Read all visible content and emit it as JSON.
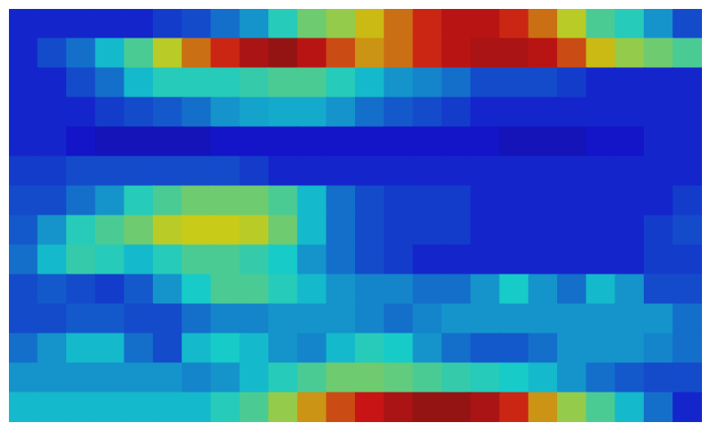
{
  "chart_data": {
    "type": "heatmap",
    "tick_labels": false,
    "xlim": [
      0,
      24
    ],
    "ylim": [
      0,
      14
    ],
    "color_range": [
      0,
      1
    ],
    "cells": [
      [
        0.15,
        0.15,
        0.15,
        0.15,
        0.15,
        0.18,
        0.2,
        0.25,
        0.3,
        0.4,
        0.5,
        0.55,
        0.65,
        0.75,
        0.85,
        0.9,
        0.9,
        0.85,
        0.75,
        0.6,
        0.45,
        0.4,
        0.3,
        0.2
      ],
      [
        0.15,
        0.2,
        0.25,
        0.35,
        0.45,
        0.6,
        0.75,
        0.85,
        0.92,
        0.95,
        0.9,
        0.8,
        0.7,
        0.75,
        0.85,
        0.9,
        0.92,
        0.92,
        0.9,
        0.8,
        0.65,
        0.55,
        0.5,
        0.45
      ],
      [
        0.15,
        0.15,
        0.2,
        0.25,
        0.35,
        0.4,
        0.4,
        0.4,
        0.42,
        0.45,
        0.45,
        0.4,
        0.35,
        0.3,
        0.28,
        0.25,
        0.2,
        0.2,
        0.2,
        0.18,
        0.15,
        0.15,
        0.15,
        0.15
      ],
      [
        0.15,
        0.15,
        0.15,
        0.18,
        0.2,
        0.22,
        0.25,
        0.3,
        0.32,
        0.33,
        0.33,
        0.3,
        0.25,
        0.22,
        0.2,
        0.18,
        0.15,
        0.15,
        0.15,
        0.15,
        0.15,
        0.15,
        0.15,
        0.15
      ],
      [
        0.15,
        0.15,
        0.12,
        0.1,
        0.1,
        0.1,
        0.1,
        0.12,
        0.12,
        0.12,
        0.12,
        0.12,
        0.12,
        0.12,
        0.12,
        0.12,
        0.12,
        0.1,
        0.1,
        0.1,
        0.12,
        0.12,
        0.15,
        0.15
      ],
      [
        0.18,
        0.18,
        0.2,
        0.2,
        0.2,
        0.2,
        0.2,
        0.2,
        0.18,
        0.15,
        0.15,
        0.15,
        0.15,
        0.15,
        0.15,
        0.15,
        0.15,
        0.15,
        0.15,
        0.15,
        0.15,
        0.15,
        0.15,
        0.15
      ],
      [
        0.2,
        0.2,
        0.25,
        0.3,
        0.4,
        0.45,
        0.5,
        0.5,
        0.5,
        0.45,
        0.35,
        0.25,
        0.2,
        0.18,
        0.18,
        0.18,
        0.15,
        0.15,
        0.15,
        0.15,
        0.15,
        0.15,
        0.15,
        0.18
      ],
      [
        0.22,
        0.3,
        0.4,
        0.45,
        0.5,
        0.6,
        0.62,
        0.62,
        0.6,
        0.5,
        0.35,
        0.25,
        0.2,
        0.18,
        0.18,
        0.18,
        0.15,
        0.15,
        0.15,
        0.15,
        0.15,
        0.15,
        0.18,
        0.2
      ],
      [
        0.25,
        0.35,
        0.42,
        0.4,
        0.35,
        0.4,
        0.45,
        0.45,
        0.42,
        0.38,
        0.3,
        0.25,
        0.2,
        0.18,
        0.15,
        0.15,
        0.15,
        0.15,
        0.15,
        0.15,
        0.15,
        0.15,
        0.18,
        0.18
      ],
      [
        0.2,
        0.22,
        0.2,
        0.18,
        0.22,
        0.3,
        0.38,
        0.45,
        0.45,
        0.4,
        0.35,
        0.3,
        0.28,
        0.28,
        0.25,
        0.25,
        0.3,
        0.38,
        0.3,
        0.25,
        0.35,
        0.3,
        0.2,
        0.2
      ],
      [
        0.2,
        0.2,
        0.22,
        0.22,
        0.2,
        0.2,
        0.25,
        0.28,
        0.28,
        0.3,
        0.3,
        0.3,
        0.28,
        0.25,
        0.28,
        0.3,
        0.3,
        0.3,
        0.3,
        0.3,
        0.3,
        0.3,
        0.3,
        0.25
      ],
      [
        0.25,
        0.3,
        0.35,
        0.35,
        0.25,
        0.2,
        0.35,
        0.38,
        0.35,
        0.3,
        0.28,
        0.35,
        0.4,
        0.38,
        0.3,
        0.25,
        0.22,
        0.22,
        0.25,
        0.3,
        0.3,
        0.3,
        0.28,
        0.25
      ],
      [
        0.3,
        0.3,
        0.3,
        0.3,
        0.3,
        0.3,
        0.28,
        0.3,
        0.35,
        0.4,
        0.45,
        0.5,
        0.5,
        0.48,
        0.45,
        0.42,
        0.4,
        0.38,
        0.35,
        0.3,
        0.25,
        0.22,
        0.2,
        0.2
      ],
      [
        0.35,
        0.35,
        0.35,
        0.35,
        0.35,
        0.35,
        0.35,
        0.4,
        0.45,
        0.55,
        0.7,
        0.8,
        0.88,
        0.92,
        0.95,
        0.95,
        0.92,
        0.85,
        0.7,
        0.55,
        0.45,
        0.35,
        0.25,
        0.15
      ]
    ]
  }
}
